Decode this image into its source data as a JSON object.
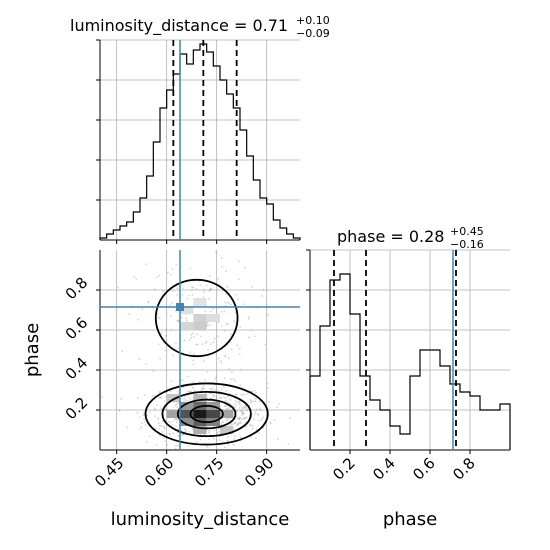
{
  "chart_data": {
    "type": "corner",
    "parameters": [
      "luminosity_distance",
      "phase"
    ],
    "truths": {
      "luminosity_distance": 0.64,
      "phase": 0.715
    },
    "colors": {
      "truth": "#4682b4",
      "hist": "#000000",
      "quantile": "#000000",
      "grid": "#b0b0b0",
      "density": "#000000"
    },
    "grid": true,
    "panels": {
      "luminosity_distance_hist": {
        "title_label": "luminosity_distance = 0.71",
        "title_sup": "+0.10",
        "title_sub": "−0.09",
        "xlim": [
          0.4,
          1.0
        ],
        "ylim": [
          0,
          1.0
        ],
        "bin_edges": [
          0.4,
          0.42,
          0.44,
          0.46,
          0.48,
          0.5,
          0.52,
          0.54,
          0.56,
          0.58,
          0.6,
          0.62,
          0.64,
          0.66,
          0.68,
          0.7,
          0.72,
          0.74,
          0.76,
          0.78,
          0.8,
          0.82,
          0.84,
          0.86,
          0.88,
          0.9,
          0.92,
          0.94,
          0.96,
          0.98,
          1.0
        ],
        "counts": [
          0.01,
          0.03,
          0.05,
          0.07,
          0.09,
          0.14,
          0.21,
          0.32,
          0.49,
          0.66,
          0.75,
          0.83,
          0.93,
          0.88,
          0.95,
          0.98,
          0.94,
          0.87,
          0.8,
          0.73,
          0.66,
          0.55,
          0.42,
          0.3,
          0.21,
          0.18,
          0.1,
          0.06,
          0.03,
          0.01
        ],
        "quantiles": [
          0.62,
          0.71,
          0.81
        ],
        "truth": 0.64,
        "yticks": [
          0.2,
          0.4,
          0.6,
          0.8,
          1.0
        ],
        "xticks": [
          0.45,
          0.6,
          0.75,
          0.9
        ]
      },
      "phase_hist": {
        "title_label": "phase = 0.28",
        "title_sup": "+0.45",
        "title_sub": "−0.16",
        "xlim": [
          0.0,
          1.0
        ],
        "ylim": [
          0,
          1.0
        ],
        "bin_edges": [
          0.0,
          0.05,
          0.1,
          0.15,
          0.2,
          0.25,
          0.3,
          0.35,
          0.4,
          0.45,
          0.5,
          0.55,
          0.6,
          0.65,
          0.7,
          0.75,
          0.8,
          0.85,
          0.9,
          0.95,
          1.0
        ],
        "counts": [
          0.37,
          0.62,
          0.85,
          0.88,
          0.68,
          0.37,
          0.25,
          0.2,
          0.12,
          0.08,
          0.37,
          0.5,
          0.5,
          0.42,
          0.33,
          0.29,
          0.27,
          0.2,
          0.2,
          0.23
        ],
        "quantiles": [
          0.12,
          0.28,
          0.73
        ],
        "truth": 0.715,
        "yticks": [
          0.2,
          0.4,
          0.6,
          0.8,
          1.0
        ],
        "xticks": [
          0.2,
          0.4,
          0.6,
          0.8
        ],
        "xtick_labels": [
          "0.2",
          "0.4",
          "0.6",
          "0.8"
        ],
        "xlabel": "phase"
      },
      "joint": {
        "xlim": [
          0.4,
          1.0
        ],
        "ylim": [
          0.0,
          1.0
        ],
        "xticks": [
          0.45,
          0.6,
          0.75,
          0.9
        ],
        "xtick_labels": [
          "0.45",
          "0.60",
          "0.75",
          "0.90"
        ],
        "yticks": [
          0.2,
          0.4,
          0.6,
          0.8
        ],
        "ytick_labels": [
          "0.2",
          "0.4",
          "0.6",
          "0.8"
        ],
        "xlabel": "luminosity_distance",
        "ylabel": "phase",
        "truth_point": [
          0.64,
          0.715
        ],
        "modes": [
          {
            "center": [
              0.72,
              0.18
            ],
            "spread": [
              0.09,
              0.075
            ],
            "weight": 1.0
          },
          {
            "center": [
              0.69,
              0.66
            ],
            "spread": [
              0.09,
              0.14
            ],
            "weight": 0.28
          }
        ],
        "levels": [
          0.1,
          0.3,
          0.6,
          0.85
        ],
        "density_squares": [
          {
            "x": 0.7,
            "y": 0.18,
            "level": 1.0
          },
          {
            "x": 0.66,
            "y": 0.18,
            "level": 0.75
          },
          {
            "x": 0.74,
            "y": 0.18,
            "level": 0.8
          },
          {
            "x": 0.7,
            "y": 0.14,
            "level": 0.7
          },
          {
            "x": 0.7,
            "y": 0.22,
            "level": 0.65
          },
          {
            "x": 0.66,
            "y": 0.14,
            "level": 0.5
          },
          {
            "x": 0.74,
            "y": 0.14,
            "level": 0.55
          },
          {
            "x": 0.66,
            "y": 0.22,
            "level": 0.45
          },
          {
            "x": 0.74,
            "y": 0.22,
            "level": 0.45
          },
          {
            "x": 0.62,
            "y": 0.18,
            "level": 0.4
          },
          {
            "x": 0.78,
            "y": 0.18,
            "level": 0.4
          },
          {
            "x": 0.62,
            "y": 0.26,
            "level": 0.25
          },
          {
            "x": 0.78,
            "y": 0.1,
            "level": 0.25
          },
          {
            "x": 0.7,
            "y": 0.26,
            "level": 0.3
          },
          {
            "x": 0.7,
            "y": 0.1,
            "level": 0.35
          },
          {
            "x": 0.66,
            "y": 0.62,
            "level": 0.18
          },
          {
            "x": 0.7,
            "y": 0.62,
            "level": 0.22
          },
          {
            "x": 0.7,
            "y": 0.66,
            "level": 0.2
          },
          {
            "x": 0.74,
            "y": 0.66,
            "level": 0.15
          },
          {
            "x": 0.66,
            "y": 0.7,
            "level": 0.14
          },
          {
            "x": 0.7,
            "y": 0.74,
            "level": 0.12
          }
        ]
      }
    }
  }
}
